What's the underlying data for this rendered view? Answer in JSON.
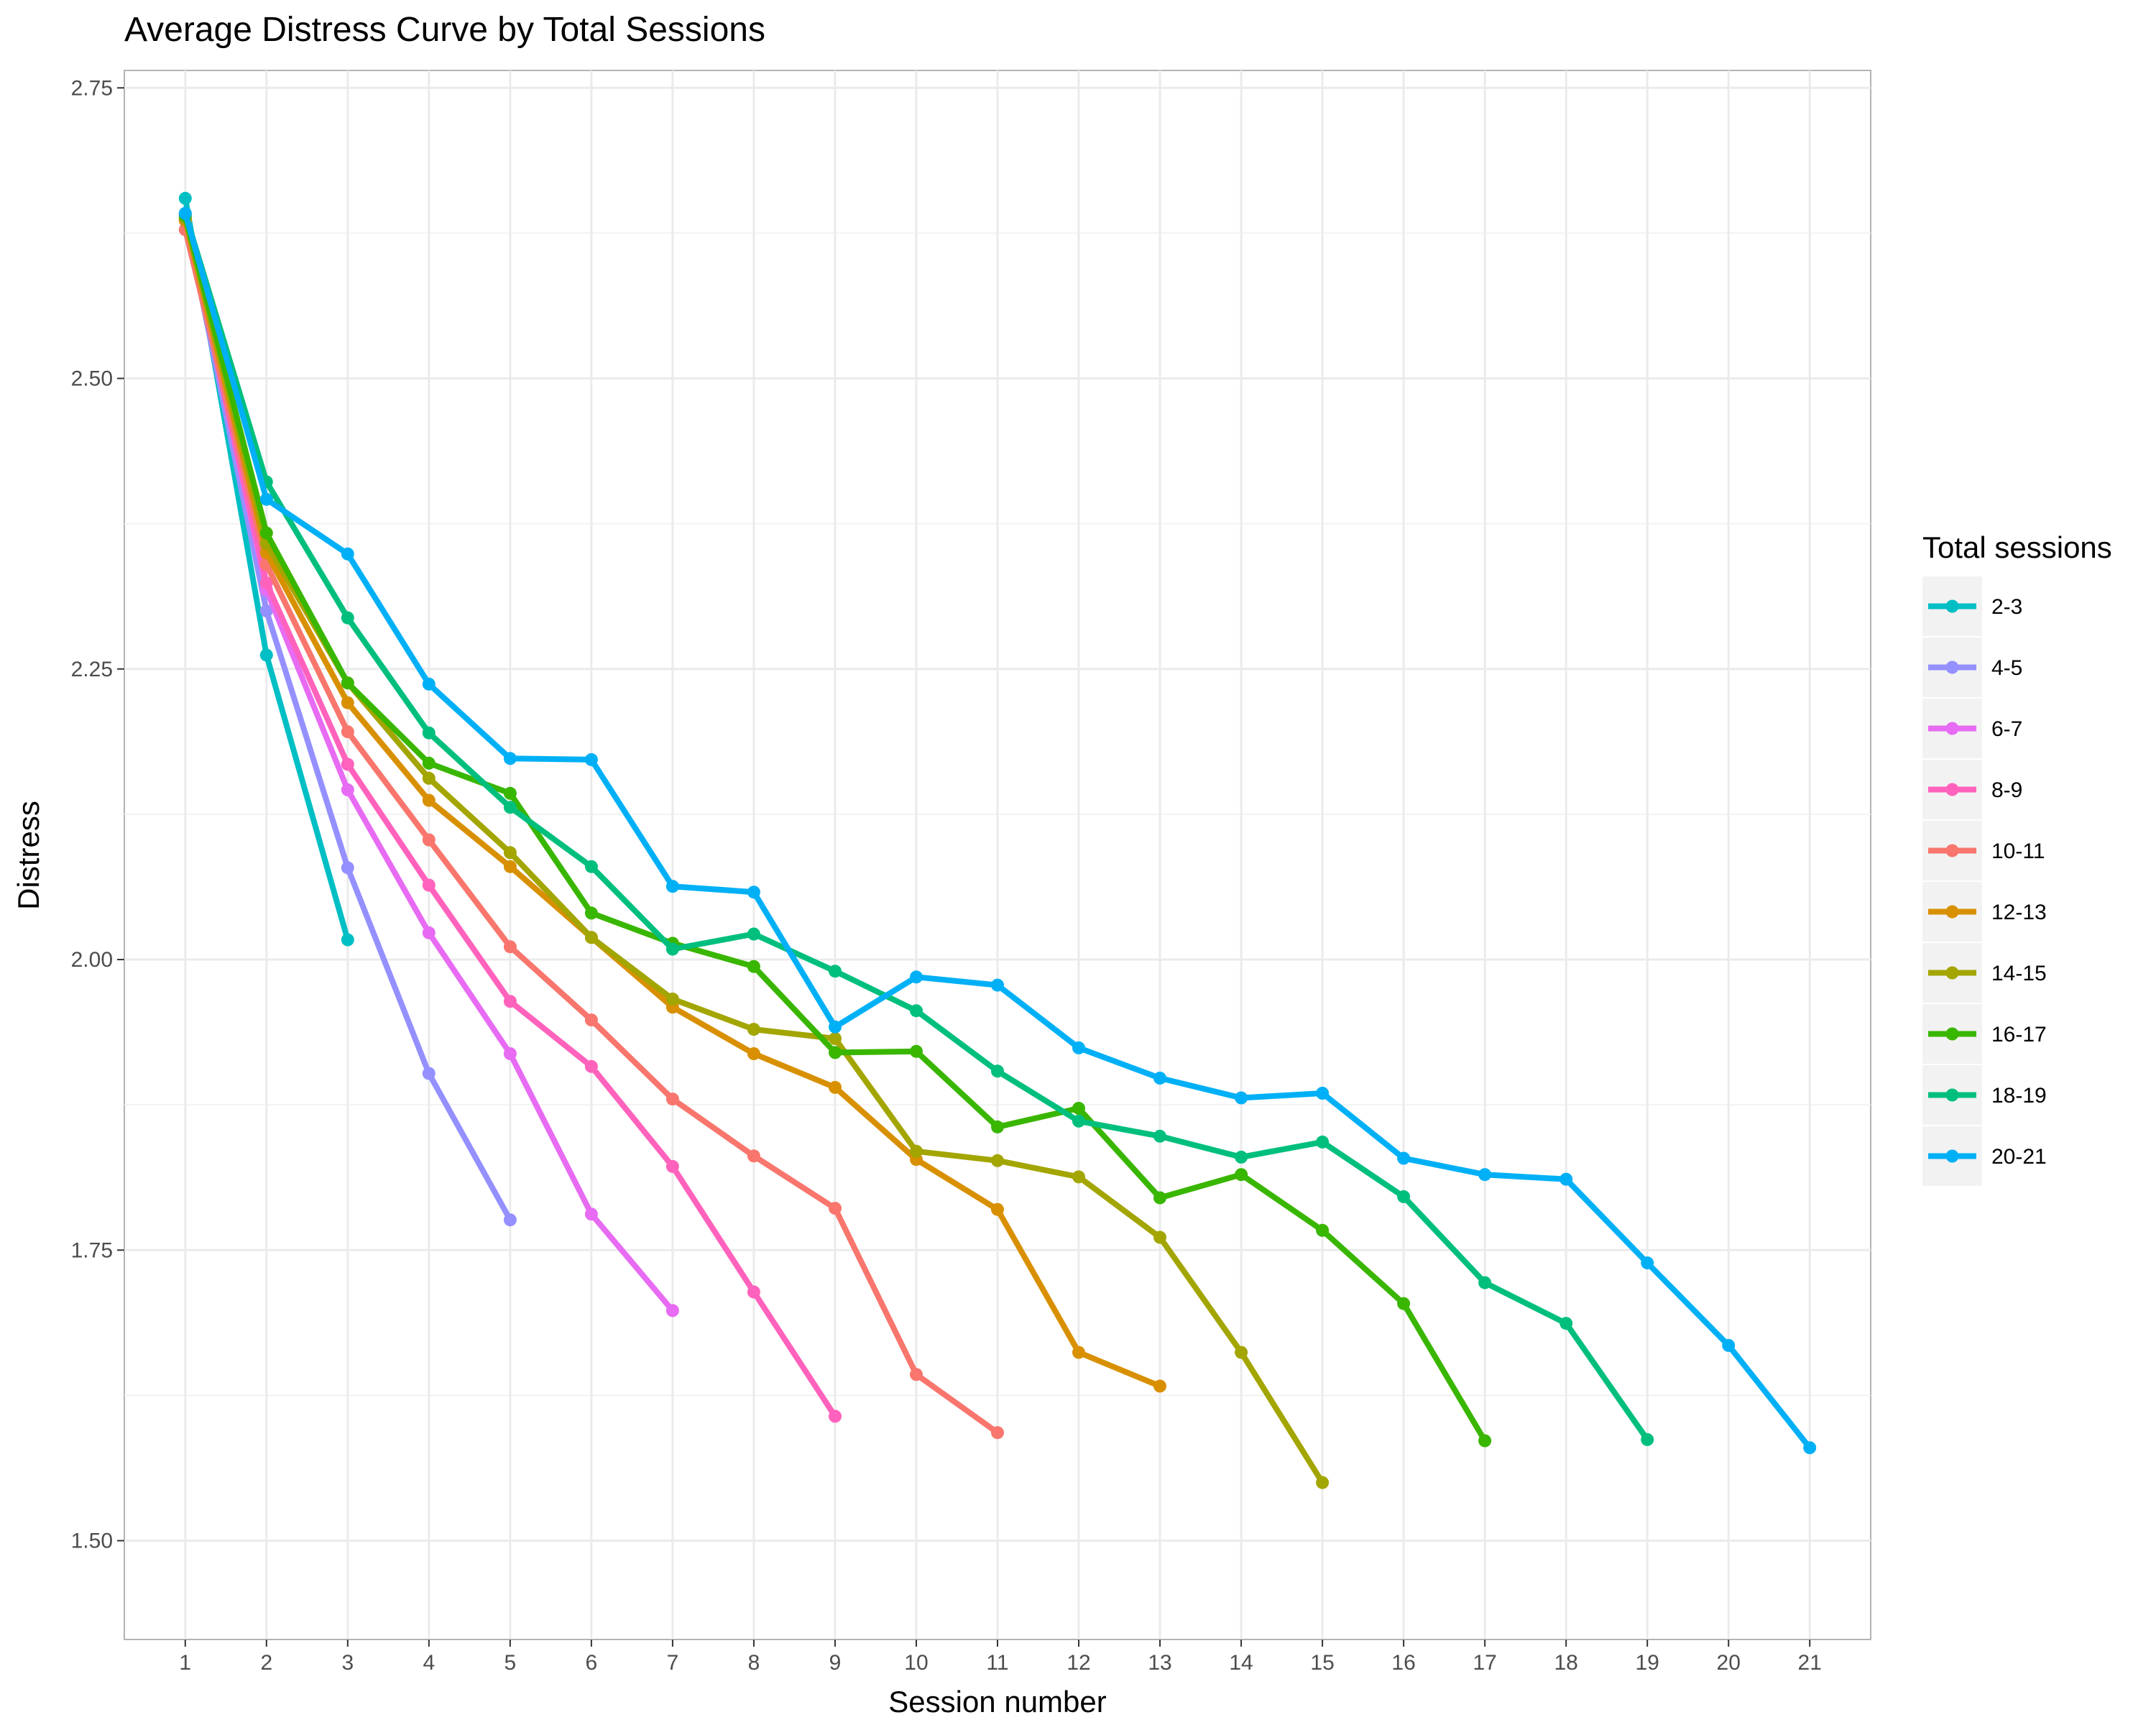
{
  "chart_data": {
    "type": "line",
    "title": "Average Distress Curve by Total Sessions",
    "xlabel": "Session number",
    "ylabel": "Distress",
    "xlim": [
      0.25,
      21.75
    ],
    "ylim": [
      1.415,
      2.765
    ],
    "x_ticks": [
      "1",
      "2",
      "3",
      "4",
      "5",
      "6",
      "7",
      "8",
      "9",
      "10",
      "11",
      "12",
      "13",
      "14",
      "15",
      "16",
      "17",
      "18",
      "19",
      "20",
      "21"
    ],
    "y_ticks": [
      "1.50",
      "1.75",
      "2.00",
      "2.25",
      "2.50",
      "2.75"
    ],
    "grid": true,
    "legend": {
      "title": "Total sessions",
      "placement": "right"
    },
    "series": [
      {
        "name": "2-3",
        "color": "#00BFC4",
        "x": [
          1,
          2,
          3
        ],
        "y": [
          2.655,
          2.262,
          2.017
        ]
      },
      {
        "name": "4-5",
        "color": "#9590FF",
        "x": [
          1,
          2,
          3,
          4,
          5
        ],
        "y": [
          2.638,
          2.3,
          2.079,
          1.902,
          1.776
        ]
      },
      {
        "name": "6-7",
        "color": "#E76BF3",
        "x": [
          1,
          2,
          3,
          4,
          5,
          6,
          7
        ],
        "y": [
          2.64,
          2.318,
          2.146,
          2.023,
          1.919,
          1.781,
          1.698
        ]
      },
      {
        "name": "8-9",
        "color": "#FF62BC",
        "x": [
          1,
          2,
          3,
          4,
          5,
          6,
          7,
          8,
          9
        ],
        "y": [
          2.636,
          2.324,
          2.168,
          2.064,
          1.964,
          1.908,
          1.822,
          1.714,
          1.607
        ]
      },
      {
        "name": "10-11",
        "color": "#F8766D",
        "x": [
          1,
          2,
          3,
          4,
          5,
          6,
          7,
          8,
          9,
          10,
          11
        ],
        "y": [
          2.628,
          2.34,
          2.196,
          2.103,
          2.011,
          1.948,
          1.88,
          1.831,
          1.786,
          1.643,
          1.593
        ]
      },
      {
        "name": "12-13",
        "color": "#D89000",
        "x": [
          1,
          2,
          3,
          4,
          5,
          6,
          7,
          8,
          9,
          10,
          11,
          12,
          13
        ],
        "y": [
          2.636,
          2.35,
          2.221,
          2.137,
          2.08,
          2.019,
          1.959,
          1.919,
          1.89,
          1.828,
          1.785,
          1.662,
          1.633
        ]
      },
      {
        "name": "14-15",
        "color": "#A3A500",
        "x": [
          1,
          2,
          3,
          4,
          5,
          6,
          7,
          8,
          9,
          10,
          11,
          12,
          13,
          14,
          15
        ],
        "y": [
          2.638,
          2.358,
          2.238,
          2.156,
          2.092,
          2.019,
          1.966,
          1.94,
          1.932,
          1.835,
          1.827,
          1.813,
          1.761,
          1.662,
          1.55
        ]
      },
      {
        "name": "16-17",
        "color": "#39B600",
        "x": [
          1,
          2,
          3,
          4,
          5,
          6,
          7,
          8,
          9,
          10,
          11,
          12,
          13,
          14,
          15,
          16,
          17
        ],
        "y": [
          2.64,
          2.367,
          2.238,
          2.169,
          2.143,
          2.04,
          2.014,
          1.994,
          1.92,
          1.921,
          1.856,
          1.872,
          1.795,
          1.815,
          1.767,
          1.704,
          1.586
        ]
      },
      {
        "name": "18-19",
        "color": "#00BF7D",
        "x": [
          1,
          2,
          3,
          4,
          5,
          6,
          7,
          8,
          9,
          10,
          11,
          12,
          13,
          14,
          15,
          16,
          17,
          18,
          19
        ],
        "y": [
          2.642,
          2.411,
          2.294,
          2.195,
          2.131,
          2.08,
          2.009,
          2.022,
          1.99,
          1.956,
          1.904,
          1.861,
          1.848,
          1.83,
          1.843,
          1.796,
          1.722,
          1.687,
          1.587
        ]
      },
      {
        "name": "20-21",
        "color": "#00B0F6",
        "x": [
          1,
          2,
          3,
          4,
          5,
          6,
          7,
          8,
          9,
          10,
          11,
          12,
          13,
          14,
          15,
          16,
          17,
          18,
          19,
          20,
          21
        ],
        "y": [
          2.642,
          2.396,
          2.349,
          2.237,
          2.173,
          2.172,
          2.063,
          2.058,
          1.942,
          1.985,
          1.978,
          1.924,
          1.898,
          1.881,
          1.885,
          1.829,
          1.815,
          1.811,
          1.739,
          1.668,
          1.58
        ]
      }
    ]
  }
}
